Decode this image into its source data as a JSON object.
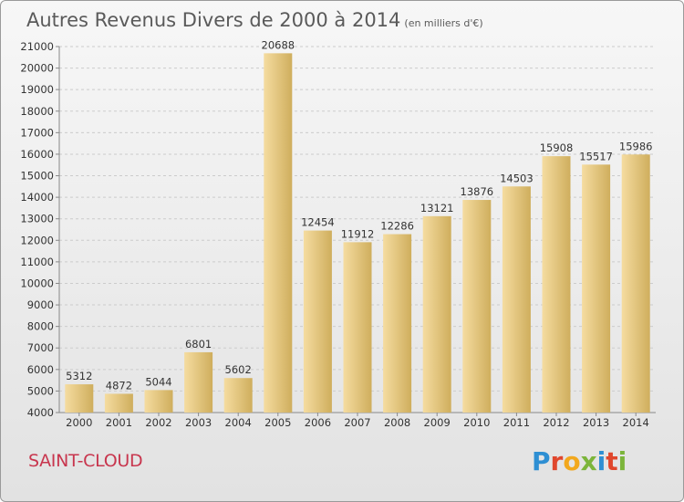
{
  "header": {
    "title": "Autres Revenus Divers de 2000 à 2014",
    "subtitle": "(en milliers d'€)"
  },
  "footer": {
    "city": "SAINT-CLOUD",
    "brand": "Proxiti",
    "brand_colors": [
      "#2e8fd3",
      "#e0472d",
      "#f2a81d",
      "#7cb53b",
      "#2e8fd3",
      "#e0472d",
      "#7cb53b"
    ]
  },
  "colors": {
    "bar_light": "#f5dca0",
    "bar_dark": "#cfae5d",
    "grid": "#cccccc",
    "axis": "#888888",
    "city": "#c8364e"
  },
  "chart_data": {
    "type": "bar",
    "title": "Autres Revenus Divers de 2000 à 2014",
    "subtitle": "(en milliers d'€)",
    "categories": [
      "2000",
      "2001",
      "2002",
      "2003",
      "2004",
      "2005",
      "2006",
      "2007",
      "2008",
      "2009",
      "2010",
      "2011",
      "2012",
      "2013",
      "2014"
    ],
    "values": [
      5312,
      4872,
      5044,
      6801,
      5602,
      20688,
      12454,
      11912,
      12286,
      13121,
      13876,
      14503,
      15908,
      15517,
      15986
    ],
    "ylim": [
      4000,
      21000
    ],
    "yticks": [
      4000,
      5000,
      6000,
      7000,
      8000,
      9000,
      10000,
      11000,
      12000,
      13000,
      14000,
      15000,
      16000,
      17000,
      18000,
      19000,
      20000,
      21000
    ],
    "grid": true,
    "xlabel": "",
    "ylabel": ""
  }
}
